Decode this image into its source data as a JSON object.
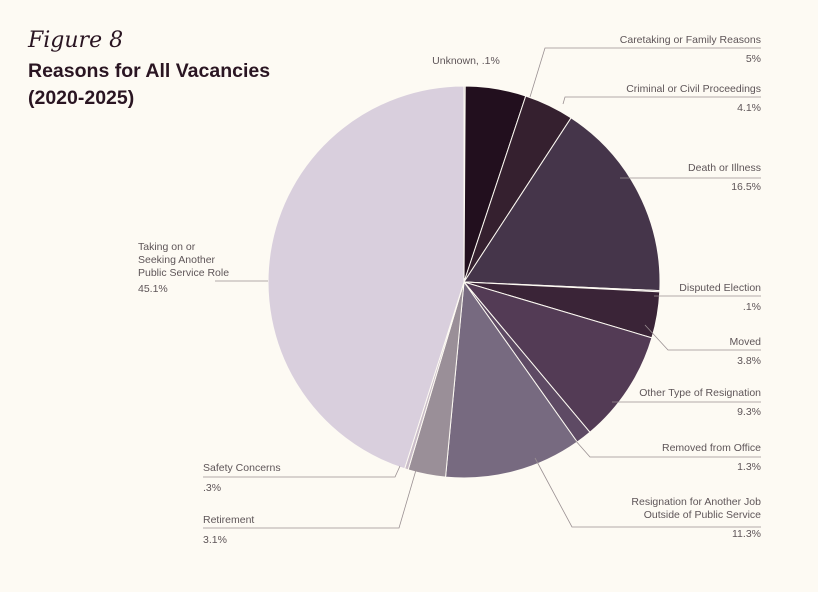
{
  "figure_label": "Figure 8",
  "title_lines": [
    "Reasons for All Vacancies",
    "(2020-2025)"
  ],
  "chart_data": {
    "type": "pie",
    "title": "Reasons for All Vacancies (2020-2025)",
    "unit": "%",
    "slices": [
      {
        "name": "Unknown",
        "value": 0.1,
        "value_label": ".1%",
        "color": "#2a1420"
      },
      {
        "name": "Caretaking or Family Reasons",
        "value": 5,
        "value_label": "5%",
        "color": "#220f1e"
      },
      {
        "name": "Criminal or Civil Proceedings",
        "value": 4.1,
        "value_label": "4.1%",
        "color": "#35202f"
      },
      {
        "name": "Death or Illness",
        "value": 16.5,
        "value_label": "16.5%",
        "color": "#45354a"
      },
      {
        "name": "Disputed Election",
        "value": 0.1,
        "value_label": ".1%",
        "color": "#4a3a4e"
      },
      {
        "name": "Moved",
        "value": 3.8,
        "value_label": "3.8%",
        "color": "#3a2437"
      },
      {
        "name": "Other Type of Resignation",
        "value": 9.3,
        "value_label": "9.3%",
        "color": "#533b55"
      },
      {
        "name": "Removed from Office",
        "value": 1.3,
        "value_label": "1.3%",
        "color": "#5e4a64"
      },
      {
        "name": "Resignation for Another Job Outside of Public Service",
        "value": 11.3,
        "value_label": "11.3%",
        "color": "#776a80"
      },
      {
        "name": "Retirement",
        "value": 3.1,
        "value_label": "3.1%",
        "color": "#9a8f98"
      },
      {
        "name": "Safety Concerns",
        "value": 0.3,
        "value_label": ".3%",
        "color": "#c9bcc8"
      },
      {
        "name": "Taking on or Seeking Another Public Service Role",
        "value": 45.1,
        "value_label": "45.1%",
        "color": "#d9cfdd"
      }
    ]
  },
  "labels": [
    {
      "lines": [
        "Unknown, .1%"
      ],
      "pct": ""
    },
    {
      "lines": [
        "Caretaking or Family Reasons"
      ],
      "pct": "5%"
    },
    {
      "lines": [
        "Criminal or Civil Proceedings"
      ],
      "pct": "4.1%"
    },
    {
      "lines": [
        "Death or Illness"
      ],
      "pct": "16.5%"
    },
    {
      "lines": [
        "Disputed Election"
      ],
      "pct": ".1%"
    },
    {
      "lines": [
        "Moved"
      ],
      "pct": "3.8%"
    },
    {
      "lines": [
        "Other Type of Resignation"
      ],
      "pct": "9.3%"
    },
    {
      "lines": [
        "Removed from Office"
      ],
      "pct": "1.3%"
    },
    {
      "lines": [
        "Resignation for Another Job",
        "Outside of Public Service"
      ],
      "pct": "11.3%"
    },
    {
      "lines": [
        "Retirement"
      ],
      "pct": "3.1%"
    },
    {
      "lines": [
        "Safety Concerns"
      ],
      "pct": ".3%"
    },
    {
      "lines": [
        "Taking on or",
        "Seeking Another",
        "Public Service Role"
      ],
      "pct": "45.1%"
    }
  ]
}
